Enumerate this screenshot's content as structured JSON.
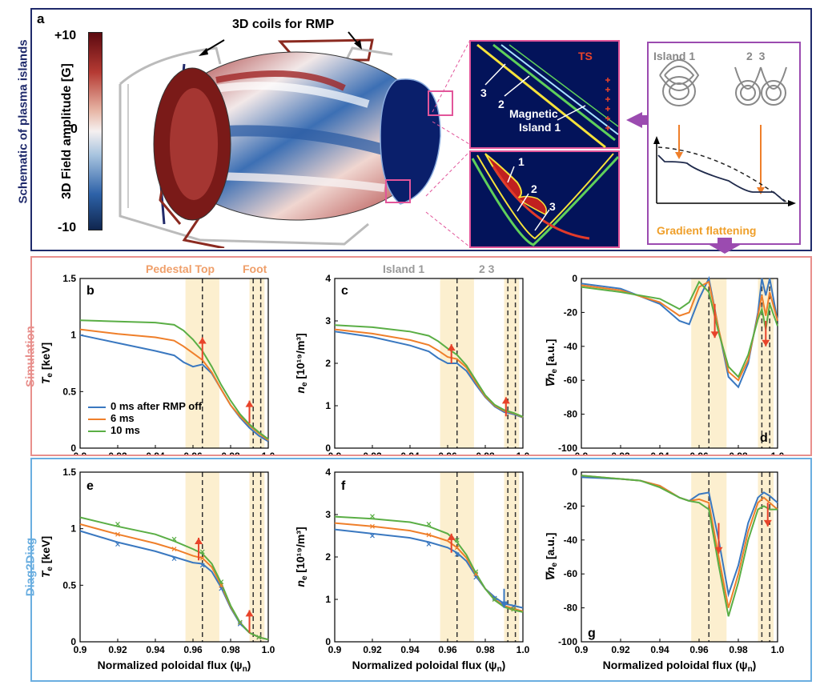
{
  "panel_a": {
    "letter": "a",
    "side_label": "Schematic of plasma islands",
    "colorbar_title": "3D Field amplitude [G]",
    "cb_max": "+10",
    "cb_mid": "0",
    "cb_min": "-10",
    "coils_label": "3D coils for RMP",
    "ts_label": "TS",
    "zoom_upper": {
      "n3": "3",
      "n2": "2",
      "island": "Magnetic",
      "island2": "Island 1"
    },
    "zoom_lower": {
      "n1": "1",
      "n2": "2",
      "n3": "3"
    },
    "inset": {
      "island1": "Island 1",
      "island23": "2  3",
      "caption": "Gradient flattening"
    }
  },
  "colors": {
    "blue": "#3a78c0",
    "orange": "#ef7f2a",
    "green": "#5aae45",
    "red": "#e8432a",
    "navy": "#1f2a6b",
    "pink": "#e68a8a",
    "lightblue": "#6aaee0",
    "band": "#fcefcf",
    "magenta": "#e2559a",
    "purple": "#9b4bb0"
  },
  "row_labels": {
    "sim": "Simulation",
    "diag": "Diag2Diag"
  },
  "top_labels": {
    "ped": "Pedestal Top",
    "foot": "Foot",
    "isl1": "Island 1",
    "isl23": "2 3"
  },
  "legend": [
    "0 ms after RMP off",
    "6 ms",
    "10 ms"
  ],
  "xlabel": "Normalized poloidal flux (ψ",
  "xlabel_sub": "n",
  "xlabel_end": ")",
  "chart_data": [
    {
      "id": "b",
      "type": "line",
      "ylabel": "T",
      "ylabel_sub": "e",
      "ylabel_unit": " [keV]",
      "ylim": [
        0,
        1.5
      ],
      "yticks": [
        "0",
        "0.5",
        "1",
        "1.5"
      ],
      "xticks": [
        "0.9",
        "0.92",
        "0.94",
        "0.96",
        "0.98",
        "1.0"
      ],
      "xlim": [
        0.9,
        1.0
      ],
      "x": [
        0.9,
        0.92,
        0.94,
        0.95,
        0.955,
        0.96,
        0.965,
        0.97,
        0.975,
        0.98,
        0.985,
        0.99,
        0.995,
        1.0
      ],
      "series": [
        {
          "name": "0 ms",
          "values": [
            1.0,
            0.93,
            0.86,
            0.82,
            0.76,
            0.72,
            0.74,
            0.66,
            0.52,
            0.38,
            0.27,
            0.18,
            0.11,
            0.06
          ]
        },
        {
          "name": "6 ms",
          "values": [
            1.05,
            1.01,
            0.98,
            0.95,
            0.9,
            0.84,
            0.78,
            0.67,
            0.52,
            0.38,
            0.28,
            0.2,
            0.13,
            0.07
          ]
        },
        {
          "name": "10 ms",
          "values": [
            1.13,
            1.12,
            1.11,
            1.09,
            1.04,
            0.96,
            0.86,
            0.72,
            0.56,
            0.42,
            0.3,
            0.21,
            0.14,
            0.08
          ]
        }
      ]
    },
    {
      "id": "c",
      "type": "line",
      "ylabel": "n",
      "ylabel_sub": "e",
      "ylabel_unit": " [10¹⁹/m³]",
      "ylim": [
        0,
        4
      ],
      "yticks": [
        "0",
        "1",
        "2",
        "3",
        "4"
      ],
      "xticks": [
        "0.9",
        "0.92",
        "0.94",
        "0.96",
        "0.98",
        "1.0"
      ],
      "xlim": [
        0.9,
        1.0
      ],
      "x": [
        0.9,
        0.92,
        0.94,
        0.95,
        0.955,
        0.96,
        0.965,
        0.97,
        0.975,
        0.98,
        0.985,
        0.99,
        0.995,
        1.0
      ],
      "series": [
        {
          "name": "0 ms",
          "values": [
            2.75,
            2.62,
            2.42,
            2.28,
            2.12,
            2.0,
            2.0,
            1.82,
            1.5,
            1.2,
            0.98,
            0.85,
            0.8,
            0.72
          ]
        },
        {
          "name": "6 ms",
          "values": [
            2.8,
            2.7,
            2.55,
            2.43,
            2.3,
            2.15,
            2.1,
            1.9,
            1.55,
            1.22,
            1.0,
            0.88,
            0.82,
            0.73
          ]
        },
        {
          "name": "10 ms",
          "values": [
            2.9,
            2.85,
            2.75,
            2.65,
            2.52,
            2.35,
            2.2,
            1.95,
            1.6,
            1.25,
            1.02,
            0.9,
            0.83,
            0.74
          ]
        }
      ]
    },
    {
      "id": "d",
      "type": "line",
      "ylabel": "∇n",
      "ylabel_sub": "e",
      "ylabel_unit": " [a.u.]",
      "ylim": [
        -100,
        0
      ],
      "yticks": [
        "-100",
        "-80",
        "-60",
        "-40",
        "-20",
        "0"
      ],
      "xticks": [
        "0.9",
        "0.92",
        "0.94",
        "0.96",
        "0.98",
        "1.0"
      ],
      "xlim": [
        0.9,
        1.0
      ],
      "x": [
        0.9,
        0.92,
        0.94,
        0.95,
        0.955,
        0.96,
        0.965,
        0.97,
        0.975,
        0.98,
        0.985,
        0.99,
        0.992,
        0.994,
        0.996,
        1.0
      ],
      "series": [
        {
          "name": "0 ms",
          "values": [
            -3,
            -6,
            -15,
            -25,
            -27,
            -12,
            0,
            -30,
            -58,
            -64,
            -50,
            -20,
            0,
            -10,
            0,
            -25
          ]
        },
        {
          "name": "6 ms",
          "values": [
            -4,
            -7,
            -14,
            -22,
            -20,
            -5,
            -2,
            -30,
            -55,
            -60,
            -48,
            -22,
            -10,
            -22,
            -8,
            -25
          ]
        },
        {
          "name": "10 ms",
          "values": [
            -5,
            -8,
            -12,
            -18,
            -14,
            -2,
            -8,
            -32,
            -52,
            -58,
            -45,
            -24,
            -18,
            -30,
            -15,
            -28
          ]
        }
      ]
    },
    {
      "id": "e",
      "type": "line",
      "ylabel": "T",
      "ylabel_sub": "e",
      "ylabel_unit": " [keV]",
      "ylim": [
        0,
        1.5
      ],
      "yticks": [
        "0",
        "0.5",
        "1",
        "1.5"
      ],
      "xticks": [
        "0.9",
        "0.92",
        "0.94",
        "0.96",
        "0.98",
        "1.0"
      ],
      "xlim": [
        0.9,
        1.0
      ],
      "x": [
        0.9,
        0.92,
        0.94,
        0.95,
        0.96,
        0.965,
        0.97,
        0.975,
        0.98,
        0.985,
        0.99,
        0.995,
        1.0
      ],
      "series": [
        {
          "name": "0 ms",
          "values": [
            0.98,
            0.88,
            0.8,
            0.75,
            0.7,
            0.69,
            0.62,
            0.48,
            0.3,
            0.16,
            0.08,
            0.04,
            0.02
          ]
        },
        {
          "name": "6 ms",
          "values": [
            1.04,
            0.95,
            0.87,
            0.82,
            0.76,
            0.74,
            0.66,
            0.5,
            0.31,
            0.17,
            0.08,
            0.04,
            0.02
          ]
        },
        {
          "name": "10 ms",
          "values": [
            1.1,
            1.02,
            0.95,
            0.89,
            0.82,
            0.78,
            0.69,
            0.52,
            0.32,
            0.17,
            0.08,
            0.04,
            0.02
          ]
        }
      ]
    },
    {
      "id": "f",
      "type": "line",
      "ylabel": "n",
      "ylabel_sub": "e",
      "ylabel_unit": " [10¹⁹/m³]",
      "ylim": [
        0,
        4
      ],
      "yticks": [
        "0",
        "1",
        "2",
        "3",
        "4"
      ],
      "xticks": [
        "0.9",
        "0.92",
        "0.94",
        "0.96",
        "0.98",
        "1.0"
      ],
      "xlim": [
        0.9,
        1.0
      ],
      "x": [
        0.9,
        0.92,
        0.94,
        0.95,
        0.96,
        0.965,
        0.97,
        0.975,
        0.98,
        0.985,
        0.99,
        0.995,
        1.0
      ],
      "series": [
        {
          "name": "0 ms",
          "values": [
            2.65,
            2.55,
            2.45,
            2.35,
            2.22,
            2.1,
            1.9,
            1.55,
            1.25,
            1.05,
            0.9,
            0.85,
            0.8
          ]
        },
        {
          "name": "6 ms",
          "values": [
            2.8,
            2.72,
            2.62,
            2.52,
            2.38,
            2.22,
            1.98,
            1.6,
            1.25,
            1.0,
            0.85,
            0.78,
            0.72
          ]
        },
        {
          "name": "10 ms",
          "values": [
            2.95,
            2.9,
            2.82,
            2.72,
            2.55,
            2.35,
            2.05,
            1.62,
            1.25,
            0.98,
            0.82,
            0.75,
            0.7
          ]
        }
      ]
    },
    {
      "id": "g",
      "type": "line",
      "ylabel": "∇n",
      "ylabel_sub": "e",
      "ylabel_unit": " [a.u.]",
      "ylim": [
        -100,
        0
      ],
      "yticks": [
        "-100",
        "-80",
        "-60",
        "-40",
        "-20",
        "0"
      ],
      "xticks": [
        "0.9",
        "0.92",
        "0.94",
        "0.96",
        "0.98",
        "1.0"
      ],
      "xlim": [
        0.9,
        1.0
      ],
      "x": [
        0.9,
        0.92,
        0.93,
        0.94,
        0.95,
        0.955,
        0.96,
        0.965,
        0.97,
        0.975,
        0.98,
        0.985,
        0.99,
        0.993,
        0.996,
        1.0
      ],
      "series": [
        {
          "name": "0 ms",
          "values": [
            -3,
            -4,
            -5,
            -8,
            -15,
            -17,
            -13,
            -12,
            -40,
            -72,
            -55,
            -30,
            -15,
            -12,
            -14,
            -18
          ]
        },
        {
          "name": "6 ms",
          "values": [
            -2,
            -4,
            -5,
            -8,
            -15,
            -17,
            -16,
            -18,
            -50,
            -80,
            -60,
            -35,
            -18,
            -15,
            -18,
            -22
          ]
        },
        {
          "name": "10 ms",
          "values": [
            -2,
            -4,
            -5,
            -9,
            -15,
            -17,
            -18,
            -22,
            -55,
            -85,
            -65,
            -40,
            -22,
            -20,
            -22,
            -22
          ]
        }
      ]
    }
  ]
}
